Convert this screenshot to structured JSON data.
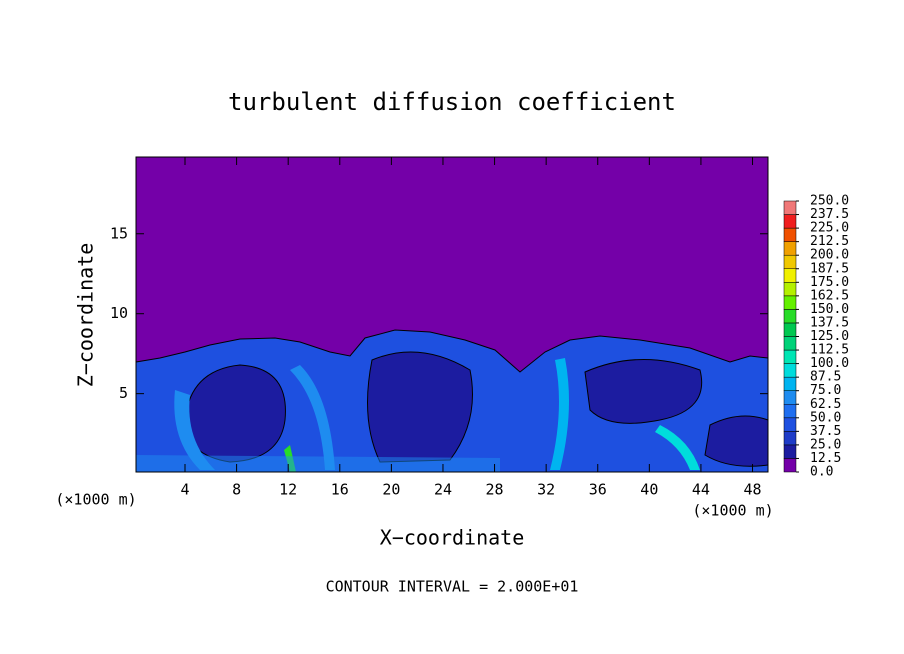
{
  "chart_data": {
    "type": "contour",
    "title": "turbulent diffusion coefficient",
    "xlabel": "X−coordinate",
    "ylabel": "Z−coordinate",
    "x_unit": "(×1000 m)",
    "y_unit": "(×1000 m)",
    "footnote": "CONTOUR INTERVAL = 2.000E+01",
    "xlim": [
      0.2,
      49.2
    ],
    "ylim": [
      0.1,
      19.8
    ],
    "xticks": [
      4,
      8,
      12,
      16,
      20,
      24,
      28,
      32,
      36,
      40,
      44,
      48
    ],
    "yticks": [
      5,
      10,
      15
    ],
    "colorbar": {
      "ticks": [
        {
          "value": 0,
          "label": "0.0"
        },
        12.5,
        {
          "value": 25,
          "label": "25.0"
        },
        37.5,
        {
          "value": 50,
          "label": "50.0"
        },
        62.5,
        {
          "value": 75,
          "label": "75.0"
        },
        87.5,
        {
          "value": 100,
          "label": "100.0"
        },
        112.5,
        {
          "value": 125,
          "label": "125.0"
        },
        137.5,
        {
          "value": 150,
          "label": "150.0"
        },
        162.5,
        {
          "value": 175,
          "label": "175.0"
        },
        187.5,
        {
          "value": 200,
          "label": "200.0"
        },
        212.5,
        {
          "value": 225,
          "label": "225.0"
        },
        237.5,
        {
          "value": 250,
          "label": "250.0"
        }
      ],
      "colors": [
        "#7400a8",
        "#1c1ca0",
        "#1e3cc8",
        "#1e50e0",
        "#1e6ef0",
        "#1e8cf0",
        "#00b4f0",
        "#00dcdc",
        "#00e6b4",
        "#00d278",
        "#00c850",
        "#28dc28",
        "#64f000",
        "#b4f000",
        "#f0f000",
        "#f0c800",
        "#f0a000",
        "#f05000",
        "#f01e1e",
        "#f07878"
      ]
    }
  }
}
